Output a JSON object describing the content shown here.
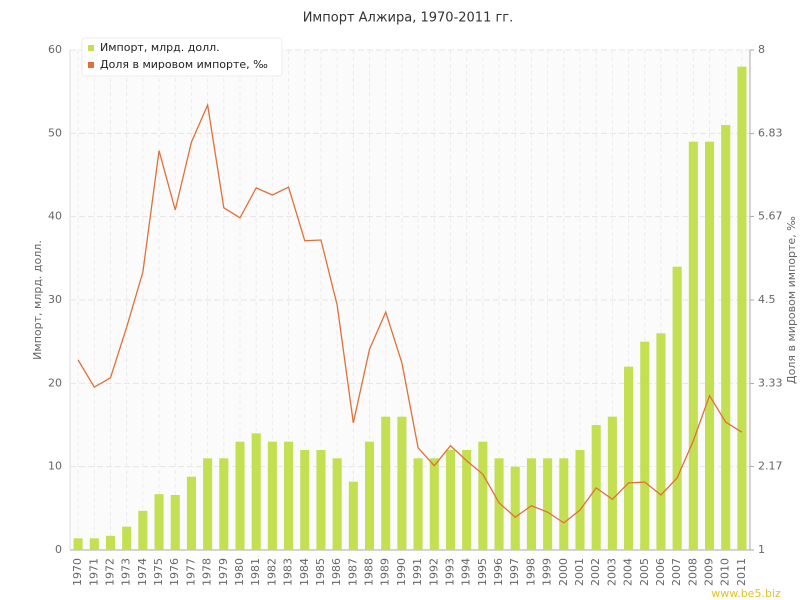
{
  "chart_data": {
    "type": "combo",
    "title": "Импорт Алжира, 1970-2011 гг.",
    "y_label": "Импорт, млрд. долл.",
    "y2_label": "Доля в мировом импорте, ‰",
    "watermark": "www.be5.biz",
    "categories": [
      "1970",
      "1971",
      "1972",
      "1973",
      "1974",
      "1975",
      "1976",
      "1977",
      "1978",
      "1979",
      "1980",
      "1981",
      "1982",
      "1983",
      "1984",
      "1985",
      "1986",
      "1987",
      "1988",
      "1989",
      "1990",
      "1991",
      "1992",
      "1993",
      "1994",
      "1995",
      "1996",
      "1997",
      "1998",
      "1999",
      "2000",
      "2001",
      "2002",
      "2003",
      "2004",
      "2005",
      "2006",
      "2007",
      "2008",
      "2009",
      "2010",
      "2011"
    ],
    "series": [
      {
        "name": "Импорт, млрд. долл.",
        "type": "bar",
        "color": "#c3df52",
        "axis": "y",
        "values": [
          1.4,
          1.4,
          1.7,
          2.8,
          4.7,
          6.7,
          6.6,
          8.8,
          11,
          11,
          13,
          14,
          13,
          13,
          12,
          12,
          11,
          8.2,
          13,
          16,
          16,
          11,
          11,
          12,
          12,
          13,
          11,
          10,
          11,
          11,
          11,
          12,
          15,
          16,
          22,
          25,
          26,
          34,
          49,
          49,
          51,
          58
        ]
      },
      {
        "name": "Доля в мировом импорте, ‰",
        "type": "line",
        "color": "#e0703a",
        "axis": "y2",
        "values": [
          3.66,
          3.28,
          3.41,
          4.12,
          4.89,
          6.59,
          5.76,
          6.71,
          7.23,
          5.79,
          5.65,
          6.07,
          5.97,
          6.08,
          5.33,
          5.34,
          4.43,
          2.78,
          3.81,
          4.33,
          3.62,
          2.43,
          2.18,
          2.46,
          2.25,
          2.06,
          1.66,
          1.46,
          1.62,
          1.53,
          1.38,
          1.56,
          1.87,
          1.71,
          1.94,
          1.95,
          1.77,
          2.01,
          2.53,
          3.16,
          2.79,
          2.65
        ]
      }
    ],
    "ylim": [
      0,
      60
    ],
    "yticks": [
      0,
      10,
      20,
      30,
      40,
      50,
      60
    ],
    "y2lim": [
      1,
      8
    ],
    "y2ticks": [
      1,
      2.17,
      3.33,
      4.5,
      5.67,
      6.83,
      8
    ],
    "grid": true,
    "legend": "top-left"
  }
}
